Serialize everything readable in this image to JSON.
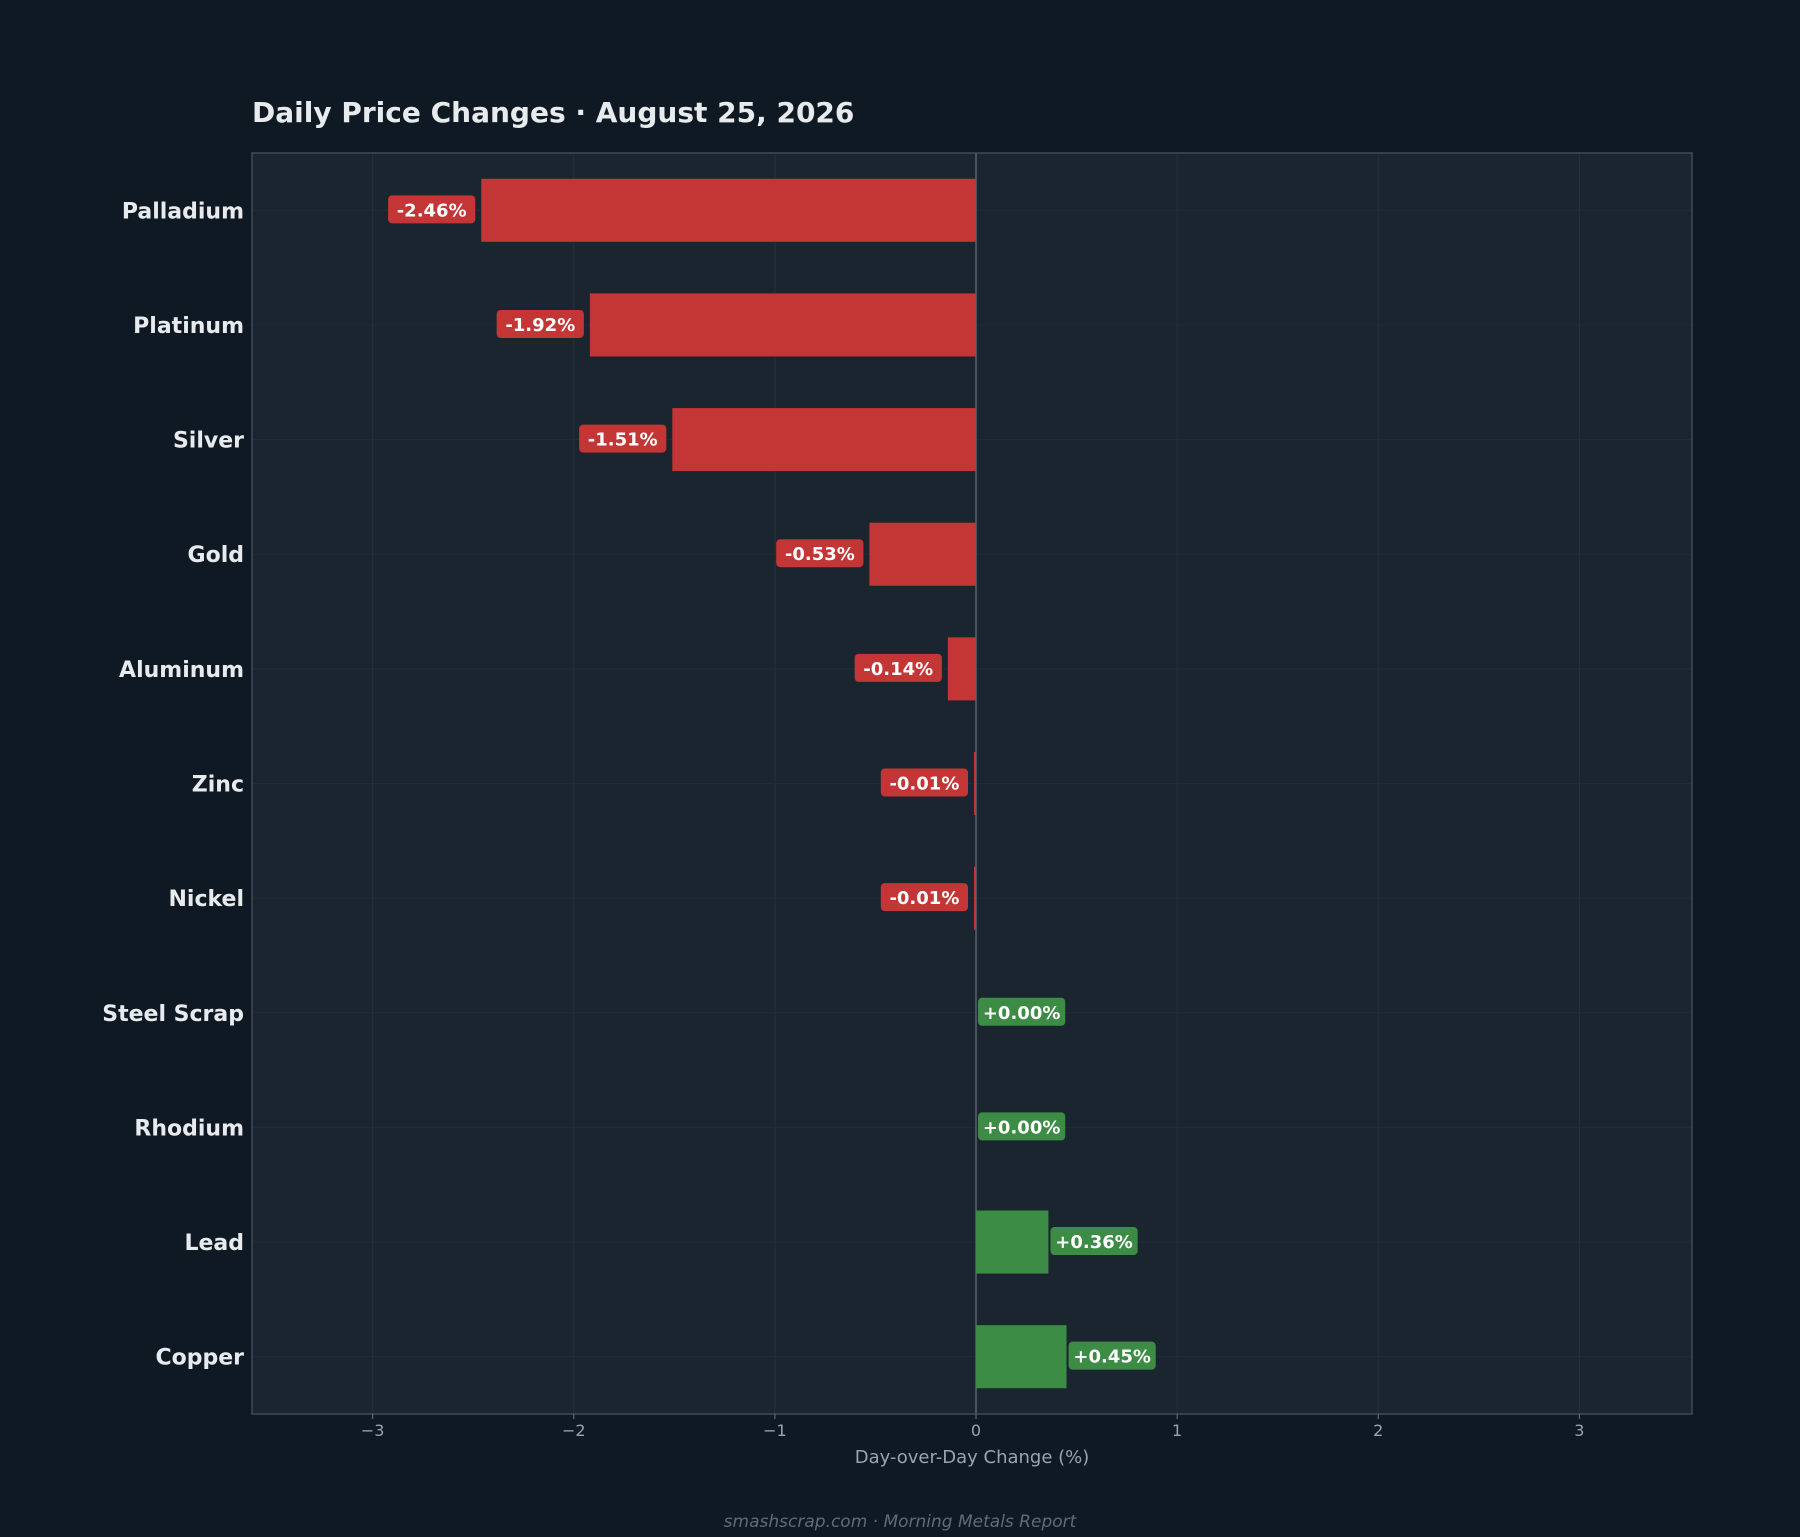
{
  "footer": "smashscrap.com  ·  Morning Metals Report",
  "colors": {
    "background": "#0f1923",
    "plot_background": "#1b2530",
    "negative": "#c43535",
    "positive": "#3c8c46",
    "frame": "#3e4a55",
    "zero_line": "#59636d"
  },
  "chart_data": {
    "type": "bar",
    "orientation": "horizontal",
    "title": "Daily Price Changes  ·  August 25, 2026",
    "xlabel": "Day-over-Day Change (%)",
    "ylabel": "",
    "xlim": [
      -3.6,
      3.56
    ],
    "xticks": [
      -3,
      -2,
      -1,
      0,
      1,
      2,
      3
    ],
    "xtick_labels": [
      "−3",
      "−2",
      "−1",
      "0",
      "1",
      "2",
      "3"
    ],
    "grid": true,
    "categories": [
      "Palladium",
      "Platinum",
      "Silver",
      "Gold",
      "Aluminum",
      "Zinc",
      "Nickel",
      "Steel Scrap",
      "Rhodium",
      "Lead",
      "Copper"
    ],
    "values": [
      -2.46,
      -1.92,
      -1.51,
      -0.53,
      -0.14,
      -0.01,
      -0.01,
      0.0,
      0.0,
      0.36,
      0.45
    ],
    "data_labels": [
      "-2.46%",
      "-1.92%",
      "-1.51%",
      "-0.53%",
      "-0.14%",
      "-0.01%",
      "-0.01%",
      "+0.00%",
      "+0.00%",
      "+0.36%",
      "+0.45%"
    ]
  }
}
